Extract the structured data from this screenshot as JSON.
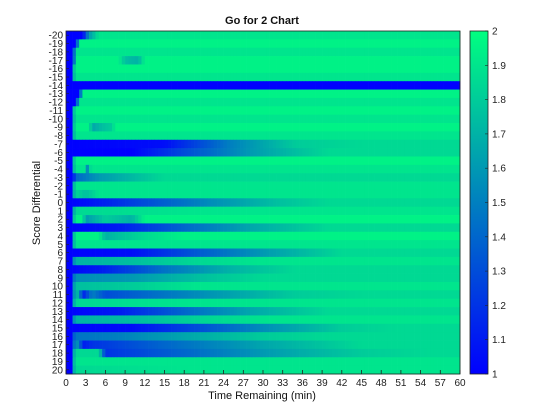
{
  "chart_data": {
    "type": "heatmap",
    "title": "Go for 2 Chart",
    "xlabel": "Time Remaining (min)",
    "ylabel": "Score Differential",
    "x_range": [
      0,
      60
    ],
    "x_ticks": [
      0,
      3,
      6,
      9,
      12,
      15,
      18,
      21,
      24,
      27,
      30,
      33,
      36,
      39,
      42,
      45,
      48,
      51,
      54,
      57,
      60
    ],
    "y_rows": [
      -20,
      -19,
      -18,
      -17,
      -16,
      -15,
      -14,
      -13,
      -12,
      -11,
      -10,
      -9,
      -8,
      -7,
      -6,
      -5,
      -4,
      -3,
      -2,
      -1,
      0,
      1,
      2,
      3,
      4,
      5,
      6,
      7,
      8,
      9,
      10,
      11,
      12,
      13,
      14,
      15,
      16,
      17,
      18,
      19,
      20
    ],
    "colorbar": {
      "min": 1,
      "max": 2,
      "ticks": [
        1,
        1.1,
        1.2,
        1.3,
        1.4,
        1.5,
        1.6,
        1.7,
        1.8,
        1.9,
        2
      ],
      "low_color": "#0000ff",
      "high_color": "#00ff80"
    },
    "grid": false,
    "rows": [
      {
        "y": -20,
        "base": 1.9,
        "ramp": [
          [
            0,
            1.0
          ],
          [
            2.5,
            1.0
          ],
          [
            3.5,
            1.6
          ],
          [
            5,
            1.9
          ]
        ]
      },
      {
        "y": -19,
        "base": 1.95,
        "ramp": [
          [
            0,
            1.0
          ],
          [
            1.5,
            1.0
          ],
          [
            2,
            1.9
          ]
        ]
      },
      {
        "y": -18,
        "base": 1.9,
        "ramp": [
          [
            0,
            1.0
          ],
          [
            1,
            1.0
          ],
          [
            1.5,
            1.9
          ]
        ]
      },
      {
        "y": -17,
        "base": 1.95,
        "ramp": [
          [
            0,
            1.0
          ],
          [
            1,
            1.0
          ],
          [
            1.5,
            1.95
          ],
          [
            8,
            1.95
          ],
          [
            9,
            1.75
          ],
          [
            11,
            1.7
          ],
          [
            12,
            1.95
          ]
        ]
      },
      {
        "y": -16,
        "base": 1.95,
        "ramp": [
          [
            0,
            1.0
          ],
          [
            1,
            1.0
          ],
          [
            1.3,
            1.95
          ]
        ]
      },
      {
        "y": -15,
        "base": 1.9,
        "ramp": [
          [
            0,
            1.0
          ],
          [
            1,
            1.0
          ],
          [
            1.3,
            1.9
          ]
        ]
      },
      {
        "y": -14,
        "base": 1.0,
        "ramp": [
          [
            0,
            1.0
          ],
          [
            60,
            1.0
          ]
        ]
      },
      {
        "y": -13,
        "base": 1.95,
        "ramp": [
          [
            0,
            1.0
          ],
          [
            2,
            1.0
          ],
          [
            2.5,
            1.95
          ]
        ]
      },
      {
        "y": -12,
        "base": 1.9,
        "ramp": [
          [
            0,
            1.0
          ],
          [
            1.5,
            1.0
          ],
          [
            2,
            1.9
          ]
        ]
      },
      {
        "y": -11,
        "base": 1.95,
        "ramp": [
          [
            0,
            1.0
          ],
          [
            1,
            1.0
          ],
          [
            1.3,
            1.95
          ]
        ]
      },
      {
        "y": -10,
        "base": 1.9,
        "ramp": [
          [
            0,
            1.0
          ],
          [
            1,
            1.0
          ],
          [
            1.3,
            1.9
          ]
        ]
      },
      {
        "y": -9,
        "base": 1.95,
        "ramp": [
          [
            0,
            1.0
          ],
          [
            1,
            1.0
          ],
          [
            1.3,
            1.95
          ],
          [
            3.5,
            1.95
          ],
          [
            4,
            1.65
          ],
          [
            5.5,
            1.75
          ],
          [
            7,
            1.8
          ],
          [
            7.5,
            1.95
          ]
        ]
      },
      {
        "y": -8,
        "base": 1.9,
        "ramp": [
          [
            0,
            1.0
          ],
          [
            1,
            1.0
          ],
          [
            1.3,
            1.9
          ]
        ]
      },
      {
        "y": -7,
        "base": 1.85,
        "ramp": [
          [
            0,
            1.0
          ],
          [
            15,
            1.05
          ],
          [
            25,
            1.5
          ],
          [
            35,
            1.8
          ],
          [
            45,
            1.85
          ]
        ]
      },
      {
        "y": -6,
        "base": 1.85,
        "ramp": [
          [
            0,
            1.0
          ],
          [
            10,
            1.0
          ],
          [
            18,
            1.3
          ],
          [
            28,
            1.6
          ],
          [
            40,
            1.85
          ]
        ]
      },
      {
        "y": -5,
        "base": 1.95,
        "ramp": [
          [
            0,
            1.0
          ],
          [
            1,
            1.0
          ],
          [
            1.3,
            1.95
          ]
        ]
      },
      {
        "y": -4,
        "base": 1.9,
        "ramp": [
          [
            0,
            1.0
          ],
          [
            1,
            1.0
          ],
          [
            1.3,
            1.9
          ],
          [
            3,
            1.9
          ],
          [
            3.3,
            1.5
          ],
          [
            3.8,
            1.9
          ]
        ]
      },
      {
        "y": -3,
        "base": 1.85,
        "ramp": [
          [
            0,
            1.0
          ],
          [
            1,
            1.0
          ],
          [
            1.5,
            1.4
          ],
          [
            5,
            1.6
          ],
          [
            15,
            1.85
          ]
        ]
      },
      {
        "y": -2,
        "base": 1.9,
        "ramp": [
          [
            0,
            1.0
          ],
          [
            1,
            1.0
          ],
          [
            1.3,
            1.9
          ]
        ]
      },
      {
        "y": -1,
        "base": 1.9,
        "ramp": [
          [
            0,
            1.0
          ],
          [
            1,
            1.0
          ],
          [
            1.3,
            1.85
          ],
          [
            3,
            1.75
          ],
          [
            4.5,
            1.85
          ],
          [
            5,
            1.9
          ]
        ]
      },
      {
        "y": 0,
        "base": 1.85,
        "ramp": [
          [
            0,
            1.0
          ],
          [
            3,
            1.05
          ],
          [
            12,
            1.3
          ],
          [
            22,
            1.55
          ],
          [
            32,
            1.75
          ],
          [
            40,
            1.85
          ]
        ]
      },
      {
        "y": 1,
        "base": 1.9,
        "ramp": [
          [
            0,
            1.0
          ],
          [
            1,
            1.0
          ],
          [
            1.3,
            1.85
          ],
          [
            20,
            1.9
          ]
        ]
      },
      {
        "y": 2,
        "base": 1.95,
        "ramp": [
          [
            0,
            1.0
          ],
          [
            1,
            1.0
          ],
          [
            1.3,
            1.95
          ],
          [
            2.5,
            1.95
          ],
          [
            3,
            1.6
          ],
          [
            6,
            1.8
          ],
          [
            10,
            1.7
          ],
          [
            12,
            1.95
          ]
        ]
      },
      {
        "y": 3,
        "base": 1.85,
        "ramp": [
          [
            0,
            1.0
          ],
          [
            8,
            1.1
          ],
          [
            18,
            1.4
          ],
          [
            28,
            1.65
          ],
          [
            40,
            1.85
          ]
        ]
      },
      {
        "y": 4,
        "base": 1.95,
        "ramp": [
          [
            0,
            1.0
          ],
          [
            1,
            1.0
          ],
          [
            1.3,
            1.95
          ],
          [
            5,
            1.95
          ],
          [
            6,
            1.7
          ],
          [
            12,
            1.85
          ],
          [
            18,
            1.95
          ]
        ]
      },
      {
        "y": 5,
        "base": 1.9,
        "ramp": [
          [
            0,
            1.0
          ],
          [
            1,
            1.0
          ],
          [
            1.3,
            1.9
          ]
        ]
      },
      {
        "y": 6,
        "base": 1.85,
        "ramp": [
          [
            0,
            1.0
          ],
          [
            10,
            1.05
          ],
          [
            20,
            1.35
          ],
          [
            30,
            1.6
          ],
          [
            42,
            1.85
          ]
        ]
      },
      {
        "y": 7,
        "base": 1.9,
        "ramp": [
          [
            0,
            1.0
          ],
          [
            1,
            1.0
          ],
          [
            1.3,
            1.7
          ],
          [
            10,
            1.75
          ],
          [
            20,
            1.85
          ],
          [
            30,
            1.9
          ]
        ]
      },
      {
        "y": 8,
        "base": 1.85,
        "ramp": [
          [
            0,
            1.0
          ],
          [
            5,
            1.1
          ],
          [
            15,
            1.45
          ],
          [
            25,
            1.7
          ],
          [
            35,
            1.85
          ]
        ]
      },
      {
        "y": 9,
        "base": 1.85,
        "ramp": [
          [
            0,
            1.0
          ],
          [
            1,
            1.0
          ],
          [
            1.3,
            1.55
          ],
          [
            10,
            1.6
          ],
          [
            20,
            1.75
          ],
          [
            30,
            1.85
          ]
        ]
      },
      {
        "y": 10,
        "base": 1.9,
        "ramp": [
          [
            0,
            1.0
          ],
          [
            1,
            1.0
          ],
          [
            1.3,
            1.75
          ],
          [
            10,
            1.8
          ],
          [
            20,
            1.9
          ]
        ]
      },
      {
        "y": 11,
        "base": 1.85,
        "ramp": [
          [
            0,
            1.0
          ],
          [
            1,
            1.0
          ],
          [
            1.3,
            1.7
          ],
          [
            2,
            1.7
          ],
          [
            2.5,
            1.1
          ],
          [
            4,
            1.5
          ],
          [
            6,
            1.3
          ],
          [
            20,
            1.55
          ],
          [
            35,
            1.8
          ],
          [
            45,
            1.85
          ]
        ]
      },
      {
        "y": 12,
        "base": 1.9,
        "ramp": [
          [
            0,
            1.0
          ],
          [
            1,
            1.0
          ],
          [
            1.3,
            1.85
          ],
          [
            20,
            1.9
          ]
        ]
      },
      {
        "y": 13,
        "base": 1.85,
        "ramp": [
          [
            0,
            1.0
          ],
          [
            8,
            1.1
          ],
          [
            18,
            1.4
          ],
          [
            28,
            1.65
          ],
          [
            40,
            1.85
          ]
        ]
      },
      {
        "y": 14,
        "base": 1.9,
        "ramp": [
          [
            0,
            1.0
          ],
          [
            1,
            1.0
          ],
          [
            1.3,
            1.7
          ],
          [
            12,
            1.75
          ],
          [
            22,
            1.85
          ],
          [
            32,
            1.9
          ]
        ]
      },
      {
        "y": 15,
        "base": 1.85,
        "ramp": [
          [
            0,
            1.0
          ],
          [
            10,
            1.05
          ],
          [
            20,
            1.3
          ],
          [
            30,
            1.55
          ],
          [
            42,
            1.8
          ],
          [
            50,
            1.85
          ]
        ]
      },
      {
        "y": 16,
        "base": 1.85,
        "ramp": [
          [
            0,
            1.0
          ],
          [
            1,
            1.0
          ],
          [
            1.3,
            1.45
          ],
          [
            8,
            1.5
          ],
          [
            18,
            1.65
          ],
          [
            30,
            1.8
          ],
          [
            40,
            1.85
          ]
        ]
      },
      {
        "y": 17,
        "base": 1.85,
        "ramp": [
          [
            0,
            1.0
          ],
          [
            1,
            1.0
          ],
          [
            1.3,
            1.55
          ],
          [
            2,
            1.55
          ],
          [
            2.5,
            1.1
          ],
          [
            4,
            1.2
          ],
          [
            15,
            1.4
          ],
          [
            30,
            1.65
          ],
          [
            45,
            1.85
          ]
        ]
      },
      {
        "y": 18,
        "base": 1.85,
        "ramp": [
          [
            0,
            1.0
          ],
          [
            1,
            1.0
          ],
          [
            1.3,
            1.85
          ],
          [
            5,
            1.85
          ],
          [
            6,
            1.2
          ],
          [
            15,
            1.35
          ],
          [
            30,
            1.6
          ],
          [
            45,
            1.8
          ],
          [
            55,
            1.85
          ]
        ]
      },
      {
        "y": 19,
        "base": 1.9,
        "ramp": [
          [
            0,
            1.0
          ],
          [
            1,
            1.0
          ],
          [
            1.3,
            1.9
          ]
        ]
      },
      {
        "y": 20,
        "base": 1.9,
        "ramp": [
          [
            0,
            1.0
          ],
          [
            1,
            1.0
          ],
          [
            1.3,
            1.85
          ],
          [
            20,
            1.9
          ]
        ]
      }
    ]
  }
}
